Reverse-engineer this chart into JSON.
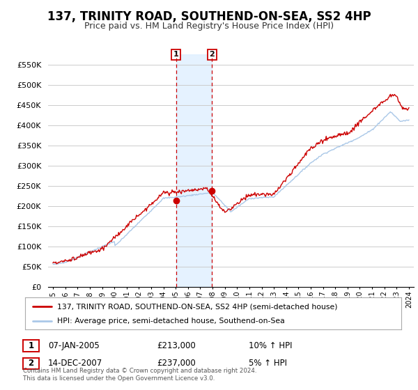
{
  "title": "137, TRINITY ROAD, SOUTHEND-ON-SEA, SS2 4HP",
  "subtitle": "Price paid vs. HM Land Registry's House Price Index (HPI)",
  "title_fontsize": 12,
  "subtitle_fontsize": 9,
  "hpi_color": "#aac8e8",
  "price_color": "#cc0000",
  "marker_color": "#cc0000",
  "background_color": "#ffffff",
  "grid_color": "#cccccc",
  "vline_color": "#cc0000",
  "vshade_color": "#ddeeff",
  "legend_label_price": "137, TRINITY ROAD, SOUTHEND-ON-SEA, SS2 4HP (semi-detached house)",
  "legend_label_hpi": "HPI: Average price, semi-detached house, Southend-on-Sea",
  "sale1_date": 2005.03,
  "sale1_price": 213000,
  "sale1_label": "07-JAN-2005",
  "sale1_price_str": "£213,000",
  "sale1_hpi_pct": "10% ↑ HPI",
  "sale2_date": 2007.96,
  "sale2_price": 237000,
  "sale2_label": "14-DEC-2007",
  "sale2_price_str": "£237,000",
  "sale2_hpi_pct": "5% ↑ HPI",
  "copyright_text": "Contains HM Land Registry data © Crown copyright and database right 2024.\nThis data is licensed under the Open Government Licence v3.0.",
  "ylim": [
    0,
    575000
  ],
  "yticks": [
    0,
    50000,
    100000,
    150000,
    200000,
    250000,
    300000,
    350000,
    400000,
    450000,
    500000,
    550000
  ],
  "ytick_labels": [
    "£0",
    "£50K",
    "£100K",
    "£150K",
    "£200K",
    "£250K",
    "£300K",
    "£350K",
    "£400K",
    "£450K",
    "£500K",
    "£550K"
  ],
  "xlim_start": 1994.6,
  "xlim_end": 2024.4,
  "xtick_years": [
    1995,
    1996,
    1997,
    1998,
    1999,
    2000,
    2001,
    2002,
    2003,
    2004,
    2005,
    2006,
    2007,
    2008,
    2009,
    2010,
    2011,
    2012,
    2013,
    2014,
    2015,
    2016,
    2017,
    2018,
    2019,
    2020,
    2021,
    2022,
    2023,
    2024
  ]
}
